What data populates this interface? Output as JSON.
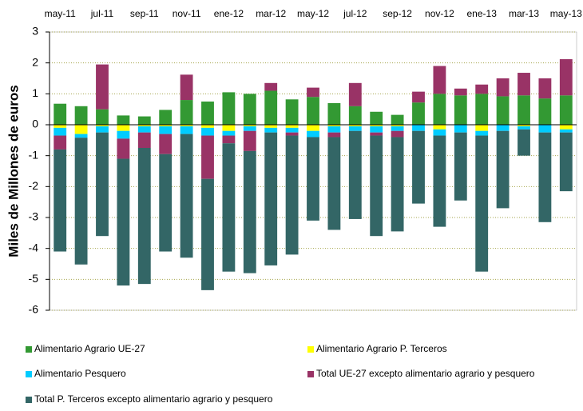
{
  "chart_data": {
    "type": "stacked_bar",
    "y_label": "Miles de Millones de euros",
    "categories": [
      "may-11",
      null,
      "jul-11",
      null,
      "sep-11",
      null,
      "nov-11",
      null,
      "ene-12",
      null,
      "mar-12",
      null,
      "may-12",
      null,
      "jul-12",
      null,
      "sep-12",
      null,
      "nov-12",
      null,
      "ene-13",
      null,
      "mar-13",
      null,
      "may-13"
    ],
    "ylim": [
      -6,
      3
    ],
    "yticks": [
      3,
      2,
      1,
      0,
      -1,
      -2,
      -3,
      -4,
      -5,
      -6
    ],
    "grid": true,
    "series": [
      {
        "name": "Alimentario Agrario UE-27",
        "color": "#339933",
        "values": [
          0.68,
          0.6,
          0.5,
          0.3,
          0.27,
          0.48,
          0.8,
          0.75,
          1.05,
          1.0,
          1.1,
          0.82,
          0.9,
          0.7,
          0.6,
          0.42,
          0.32,
          0.72,
          1.0,
          0.95,
          1.0,
          0.92,
          0.95,
          0.85,
          0.95
        ]
      },
      {
        "name": "Alimentario Agrario P. Terceros",
        "color": "#ffff00",
        "values": [
          -0.1,
          -0.3,
          -0.05,
          -0.2,
          -0.05,
          -0.05,
          -0.05,
          -0.1,
          -0.2,
          -0.05,
          -0.1,
          -0.1,
          -0.2,
          -0.05,
          -0.05,
          -0.05,
          -0.05,
          0,
          -0.15,
          0,
          -0.2,
          0,
          -0.05,
          0,
          -0.15
        ]
      },
      {
        "name": "Alimentario Pesquero",
        "color": "#00ccff",
        "values": [
          -0.25,
          -0.12,
          -0.2,
          -0.25,
          -0.2,
          -0.25,
          -0.25,
          -0.25,
          -0.15,
          -0.15,
          -0.15,
          -0.15,
          -0.2,
          -0.2,
          -0.15,
          -0.2,
          -0.15,
          -0.2,
          -0.2,
          -0.25,
          -0.15,
          -0.2,
          -0.1,
          -0.25,
          -0.1
        ]
      },
      {
        "name": "Total UE-27 excepto alimentario agrario y pesquero",
        "color": "#993366",
        "values": [
          -0.45,
          0,
          1.45,
          -0.65,
          -0.5,
          -0.65,
          0.82,
          -1.4,
          -0.25,
          -0.65,
          0.25,
          -0.1,
          0.3,
          -0.15,
          0.75,
          -0.1,
          -0.2,
          0.35,
          0.9,
          0.22,
          0.3,
          0.58,
          0.73,
          0.65,
          1.17
        ]
      },
      {
        "name": "Total P. Terceros excepto alimentario agrario y pesquero",
        "color": "#336666",
        "values": [
          -3.3,
          -4.1,
          -3.35,
          -4.1,
          -4.4,
          -3.15,
          -4.0,
          -3.6,
          -4.15,
          -3.95,
          -4.3,
          -3.85,
          -2.7,
          -3.0,
          -2.85,
          -3.25,
          -3.05,
          -2.35,
          -2.95,
          -2.2,
          -4.4,
          -2.5,
          -0.85,
          -2.9,
          -1.9
        ]
      }
    ]
  }
}
